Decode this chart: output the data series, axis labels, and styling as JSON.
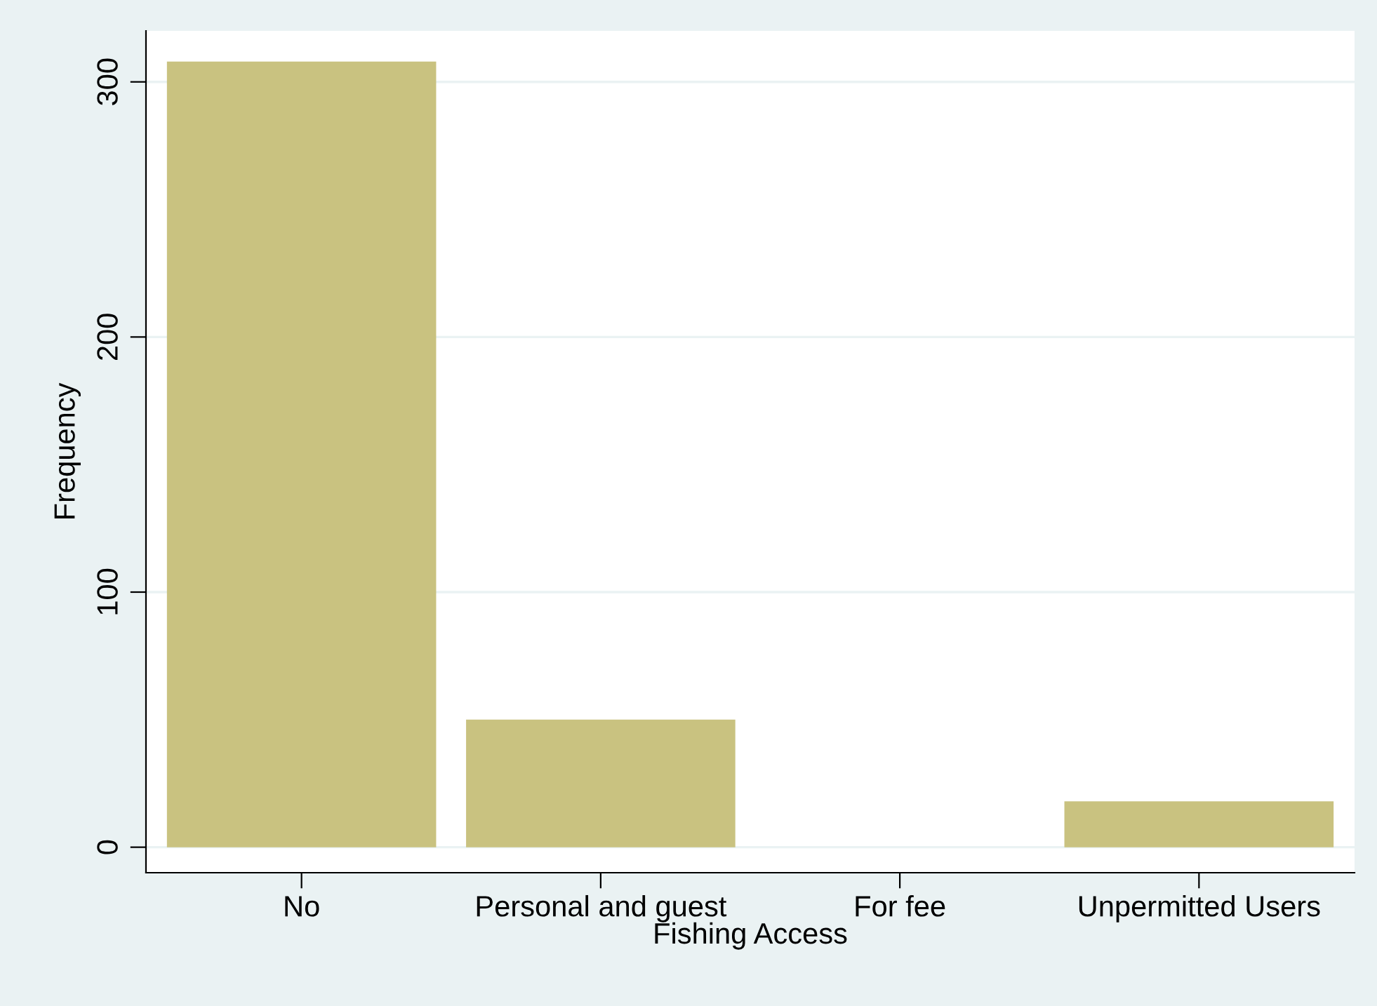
{
  "chart_data": {
    "type": "bar",
    "xlabel": "Fishing Access",
    "ylabel": "Frequency",
    "categories": [
      "No",
      "Personal and guest",
      "For fee",
      "Unpermitted Users"
    ],
    "values": [
      308,
      50,
      0,
      18
    ],
    "color": "#c9c280",
    "ylim": [
      -10,
      320
    ],
    "yticks": [
      0,
      100,
      200,
      300
    ],
    "grid": "y"
  }
}
